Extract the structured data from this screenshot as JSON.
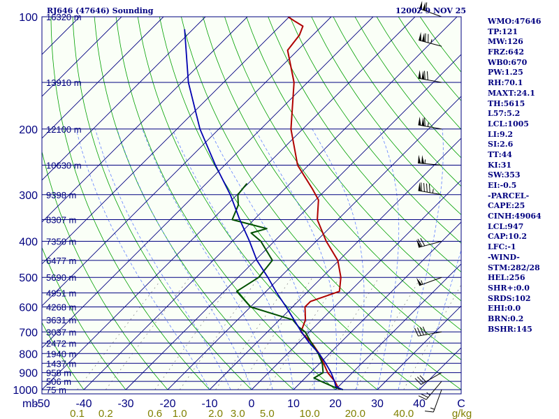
{
  "header": {
    "station": "RJ646 (47646) Sounding",
    "time": "1200Z  9 NOV 25"
  },
  "indices": [
    "WMO:47646",
    "TP:121",
    "MW:126",
    "FRZ:642",
    "WB0:670",
    "PW:1.25",
    "RH:70.1",
    "MAXT:24.1",
    "TH:5615",
    "L57:5.2",
    "LCL:1005",
    "LI:9.2",
    "SI:2.6",
    "TT:44",
    "KI:31",
    "SW:353",
    "EI:-0.5",
    "-PARCEL-",
    "CAPE:25",
    "CINH:49064",
    "LCL:947",
    "CAP:10.2",
    "LFC:-1",
    "-WIND-",
    "STM:282/28",
    "HEL:256",
    "SHR+:0.0",
    "SRDS:102",
    "EHI:0.0",
    "BRN:0.2",
    "BSHR:145"
  ],
  "colors": {
    "background": "#ffffff",
    "plot_area": "#fafff7",
    "isobar": "#000080",
    "isotherm": "#000080",
    "dry_adiabat": "#00a000",
    "moist_adiabat": "#6080ff",
    "mixing_ratio": "#808080",
    "temperature": "#b00000",
    "dewpoint": "#005000",
    "parcel": "#0000b0",
    "text": "#000080",
    "mixing_label": "#808000"
  },
  "chart_data": {
    "type": "line",
    "diagram": "skew-t log-p",
    "title": "RJ646 (47646) Sounding",
    "subtitle": "1200Z  9 NOV 25",
    "xlabel": "°C",
    "ylabel": "mb",
    "mixing_ratio_unit": "g/kg",
    "y_scale": "log",
    "ylim": [
      1000,
      100
    ],
    "temperature_ticks": [
      -50,
      -40,
      -30,
      -20,
      -10,
      0,
      10,
      20,
      30,
      40
    ],
    "temperature_tick_labels": [
      "-50",
      "-40",
      "-30",
      "-20",
      "-10",
      "0",
      "10",
      "20",
      "30",
      "40",
      "C"
    ],
    "pressure_ticks": [
      100,
      200,
      300,
      400,
      500,
      600,
      700,
      800,
      900,
      1000
    ],
    "pressure_tick_labels": [
      "100",
      "200",
      "300",
      "400",
      "500",
      "600",
      "700",
      "800",
      "900",
      "1000"
    ],
    "mixing_ratio_ticks": [
      0.1,
      0.2,
      0.6,
      1.0,
      2.0,
      3.0,
      5.0,
      10.0,
      20.0,
      40.0
    ],
    "mixing_ratio_tick_labels": [
      "0.1",
      "0.2",
      "0.6",
      "1.0",
      "2.0",
      "3.0",
      "5.0",
      "10.0",
      "20.0",
      "40.0"
    ],
    "height_levels": [
      {
        "p": 100,
        "label": "16320 m"
      },
      {
        "p": 150,
        "label": "13910 m"
      },
      {
        "p": 200,
        "label": "12100 m"
      },
      {
        "p": 250,
        "label": "10630 m"
      },
      {
        "p": 300,
        "label": "9398 m"
      },
      {
        "p": 350,
        "label": "8307 m"
      },
      {
        "p": 400,
        "label": "7350 m"
      },
      {
        "p": 450,
        "label": "6477 m"
      },
      {
        "p": 500,
        "label": "5690 m"
      },
      {
        "p": 550,
        "label": "4951 m"
      },
      {
        "p": 600,
        "label": "4268 m"
      },
      {
        "p": 650,
        "label": "3631 m"
      },
      {
        "p": 700,
        "label": "3037 m"
      },
      {
        "p": 750,
        "label": "2472 m"
      },
      {
        "p": 800,
        "label": "1940 m"
      },
      {
        "p": 850,
        "label": "1437 m"
      },
      {
        "p": 900,
        "label": "958 m"
      },
      {
        "p": 950,
        "label": "506 m"
      },
      {
        "p": 1000,
        "label": "75 m"
      }
    ],
    "series": [
      {
        "key": "temperature",
        "points": [
          [
            100,
            -80.3
          ],
          [
            103,
            -77.4
          ],
          [
            106,
            -74.5
          ],
          [
            112,
            -73.2
          ],
          [
            123,
            -72.4
          ],
          [
            150,
            -63.2
          ],
          [
            200,
            -52.8
          ],
          [
            250,
            -42.6
          ],
          [
            290,
            -33.3
          ],
          [
            310,
            -29.3
          ],
          [
            350,
            -24.9
          ],
          [
            400,
            -17.6
          ],
          [
            450,
            -10.3
          ],
          [
            500,
            -5.5
          ],
          [
            545,
            -2.5
          ],
          [
            580,
            -7.0
          ],
          [
            600,
            -7.0
          ],
          [
            650,
            -3.8
          ],
          [
            700,
            -2.0
          ],
          [
            750,
            3.3
          ],
          [
            800,
            7.5
          ],
          [
            850,
            10.9
          ],
          [
            900,
            14.1
          ],
          [
            950,
            17.9
          ],
          [
            980,
            19.7
          ],
          [
            1000,
            21.0
          ]
        ]
      },
      {
        "key": "dewpoint",
        "points": [
          [
            280,
            -50.3
          ],
          [
            300,
            -49.8
          ],
          [
            320,
            -47.2
          ],
          [
            350,
            -45.2
          ],
          [
            370,
            -34.8
          ],
          [
            380,
            -37.5
          ],
          [
            400,
            -33.2
          ],
          [
            450,
            -25.9
          ],
          [
            500,
            -25.1
          ],
          [
            545,
            -27.0
          ],
          [
            600,
            -20.0
          ],
          [
            650,
            -6.8
          ],
          [
            680,
            -3.6
          ],
          [
            700,
            -1.0
          ],
          [
            750,
            3.2
          ],
          [
            800,
            7.3
          ],
          [
            850,
            10.6
          ],
          [
            900,
            13.0
          ],
          [
            930,
            12.1
          ],
          [
            950,
            14.6
          ],
          [
            985,
            19.2
          ],
          [
            1000,
            21.8
          ]
        ]
      },
      {
        "key": "parcel",
        "points": [
          [
            108,
            -102.0
          ],
          [
            150,
            -88.4
          ],
          [
            200,
            -74.5
          ],
          [
            250,
            -62.2
          ],
          [
            300,
            -51.6
          ],
          [
            350,
            -43.4
          ],
          [
            400,
            -35.9
          ],
          [
            450,
            -29.6
          ],
          [
            500,
            -22.9
          ],
          [
            550,
            -17.1
          ],
          [
            600,
            -11.5
          ],
          [
            650,
            -6.5
          ],
          [
            700,
            -1.9
          ],
          [
            750,
            2.7
          ],
          [
            800,
            7.5
          ],
          [
            850,
            11.4
          ],
          [
            900,
            14.9
          ],
          [
            950,
            17.8
          ],
          [
            980,
            19.3
          ],
          [
            1000,
            21.7
          ]
        ]
      }
    ],
    "wind_barbs": [
      {
        "p": 100,
        "dir": 290,
        "spd": 110
      },
      {
        "p": 120,
        "dir": 285,
        "spd": 125
      },
      {
        "p": 150,
        "dir": 280,
        "spd": 120
      },
      {
        "p": 200,
        "dir": 280,
        "spd": 115
      },
      {
        "p": 250,
        "dir": 275,
        "spd": 105
      },
      {
        "p": 300,
        "dir": 280,
        "spd": 95
      },
      {
        "p": 400,
        "dir": 255,
        "spd": 70
      },
      {
        "p": 500,
        "dir": 250,
        "spd": 55
      },
      {
        "p": 700,
        "dir": 260,
        "spd": 40
      },
      {
        "p": 900,
        "dir": 240,
        "spd": 30
      },
      {
        "p": 950,
        "dir": 220,
        "spd": 25
      },
      {
        "p": 1000,
        "dir": 200,
        "spd": 15
      }
    ]
  }
}
